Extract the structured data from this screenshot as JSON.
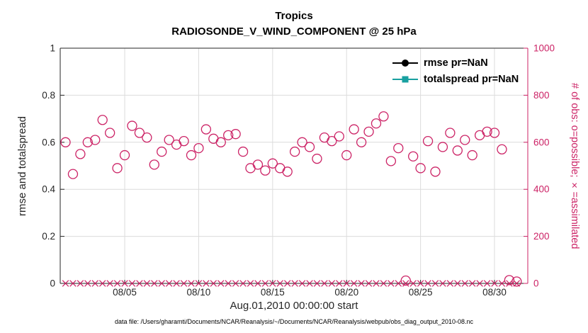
{
  "figure": {
    "title_line1": "Tropics",
    "title_line2": "RADIOSONDE_V_WIND_COMPONENT @ 25 hPa",
    "xlabel": "Aug.01,2010 00:00:00 start",
    "ylabel_left": "rmse and totalspread",
    "ylabel_right": "# of obs: o=possible; ×=assimilated",
    "caption": "data file: /Users/gharamti/Documents/NCAR/Reanalysis/~/Documents/NCAR/Reanalysis/webpub/obs_diag_output_2010-08.nc",
    "legend": [
      {
        "label": "rmse pr=NaN",
        "marker": "circle",
        "color": "#000000"
      },
      {
        "label": "totalspread pr=NaN",
        "marker": "square",
        "color": "#18A0A0"
      }
    ],
    "colors": {
      "obs_axis": "#CC2366",
      "rmse": "#000000",
      "totalspread": "#18A0A0",
      "grid": "#DCDCDC",
      "axis": "#262626"
    }
  },
  "chart_data": {
    "type": "scatter",
    "x_days": [
      1,
      1.5,
      2,
      2.5,
      3,
      3.5,
      4,
      4.5,
      5,
      5.5,
      6,
      6.5,
      7,
      7.5,
      8,
      8.5,
      9,
      9.5,
      10,
      10.5,
      11,
      11.5,
      12,
      12.5,
      13,
      13.5,
      14,
      14.5,
      15,
      15.5,
      16,
      16.5,
      17,
      17.5,
      18,
      18.5,
      19,
      19.5,
      20,
      20.5,
      21,
      21.5,
      22,
      22.5,
      23,
      23.5,
      24,
      24.5,
      25,
      25.5,
      26,
      26.5,
      27,
      27.5,
      28,
      28.5,
      29,
      29.5,
      30,
      30.5,
      31,
      31.5
    ],
    "series": [
      {
        "name": "rmse",
        "axis": "left",
        "marker": "filled-circle",
        "values": "NaN"
      },
      {
        "name": "totalspread",
        "axis": "left",
        "marker": "filled-square",
        "values": "NaN"
      },
      {
        "name": "n_possible",
        "axis": "right",
        "marker": "o",
        "values": [
          600,
          465,
          550,
          600,
          610,
          695,
          640,
          490,
          545,
          670,
          640,
          620,
          505,
          560,
          610,
          590,
          605,
          545,
          575,
          655,
          615,
          600,
          630,
          635,
          560,
          490,
          505,
          480,
          510,
          490,
          475,
          560,
          600,
          580,
          530,
          620,
          605,
          625,
          545,
          655,
          600,
          645,
          680,
          710,
          520,
          575,
          12,
          540,
          490,
          605,
          475,
          580,
          640,
          565,
          610,
          545,
          630,
          645,
          640,
          570,
          14,
          8
        ]
      },
      {
        "name": "n_assimilated",
        "axis": "right",
        "marker": "x",
        "values": [
          0,
          0,
          0,
          0,
          0,
          0,
          0,
          0,
          0,
          0,
          0,
          0,
          0,
          0,
          0,
          0,
          0,
          0,
          0,
          0,
          0,
          0,
          0,
          0,
          0,
          0,
          0,
          0,
          0,
          0,
          0,
          0,
          0,
          0,
          0,
          0,
          0,
          0,
          0,
          0,
          0,
          0,
          0,
          0,
          0,
          0,
          0,
          0,
          0,
          0,
          0,
          0,
          0,
          0,
          0,
          0,
          0,
          0,
          0,
          0,
          0,
          0
        ]
      }
    ],
    "left_axis": {
      "label": "rmse and totalspread",
      "range": [
        0,
        1
      ],
      "ticks": [
        0,
        0.2,
        0.4,
        0.6,
        0.8,
        1
      ]
    },
    "right_axis": {
      "label": "# of obs: o=possible; ×=assimilated",
      "range": [
        0,
        1000
      ],
      "ticks": [
        0,
        200,
        400,
        600,
        800,
        1000
      ]
    },
    "x_axis": {
      "label": "Aug.01,2010 00:00:00 start",
      "range_days": [
        0.64,
        32.25
      ],
      "tick_days": [
        5,
        10,
        15,
        20,
        25,
        30
      ],
      "tick_labels": [
        "08/05",
        "08/10",
        "08/15",
        "08/20",
        "08/25",
        "08/30"
      ]
    },
    "grid": true
  }
}
